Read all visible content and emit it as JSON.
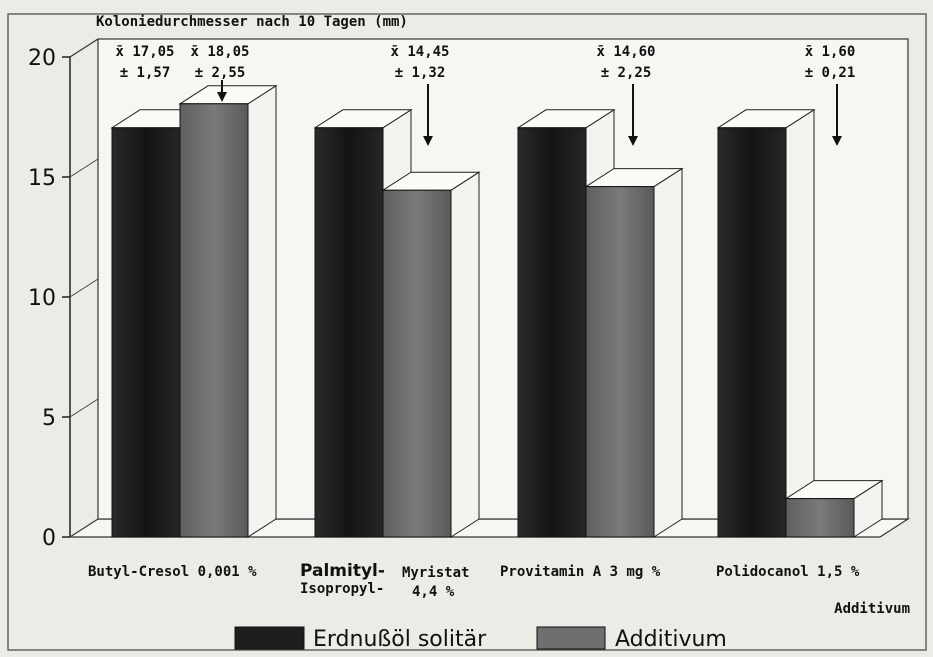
{
  "chart_data": {
    "type": "bar",
    "title": "Koloniedurchmesser nach 10 Tagen (mm)",
    "xlabel": "Additivum",
    "ylabel": "",
    "ylim": [
      0,
      20
    ],
    "yticks": [
      "0",
      "5",
      "10",
      "15",
      "20"
    ],
    "grid": false,
    "legend_position": "bottom",
    "categories": [
      {
        "lines": [
          "Butyl-Cresol 0,001 %"
        ]
      },
      {
        "lines": [
          "Palmityl-",
          "Isopropyl-",
          "Myristat",
          "4,4 %"
        ]
      },
      {
        "lines": [
          "Provitamin A 3 mg %"
        ]
      },
      {
        "lines": [
          "Polidocanol 1,5 %"
        ]
      }
    ],
    "series": [
      {
        "name": "Erdnußöl solitär",
        "color": "#1e1e1e",
        "values": [
          17.05,
          17.05,
          17.05,
          17.05
        ]
      },
      {
        "name": "Additivum",
        "color": "#6f6f6f",
        "values": [
          18.05,
          14.45,
          14.6,
          1.6
        ]
      }
    ],
    "annotations": [
      {
        "mean": "x̄ 17,05",
        "sd": "± 1,57"
      },
      {
        "mean": "x̄ 18,05",
        "sd": "± 2,55"
      },
      {
        "mean": "x̄ 14,45",
        "sd": "± 1,32"
      },
      {
        "mean": "x̄ 14,60",
        "sd": "± 2,25"
      },
      {
        "mean": "x̄ 1,60",
        "sd": "± 0,21"
      }
    ]
  }
}
